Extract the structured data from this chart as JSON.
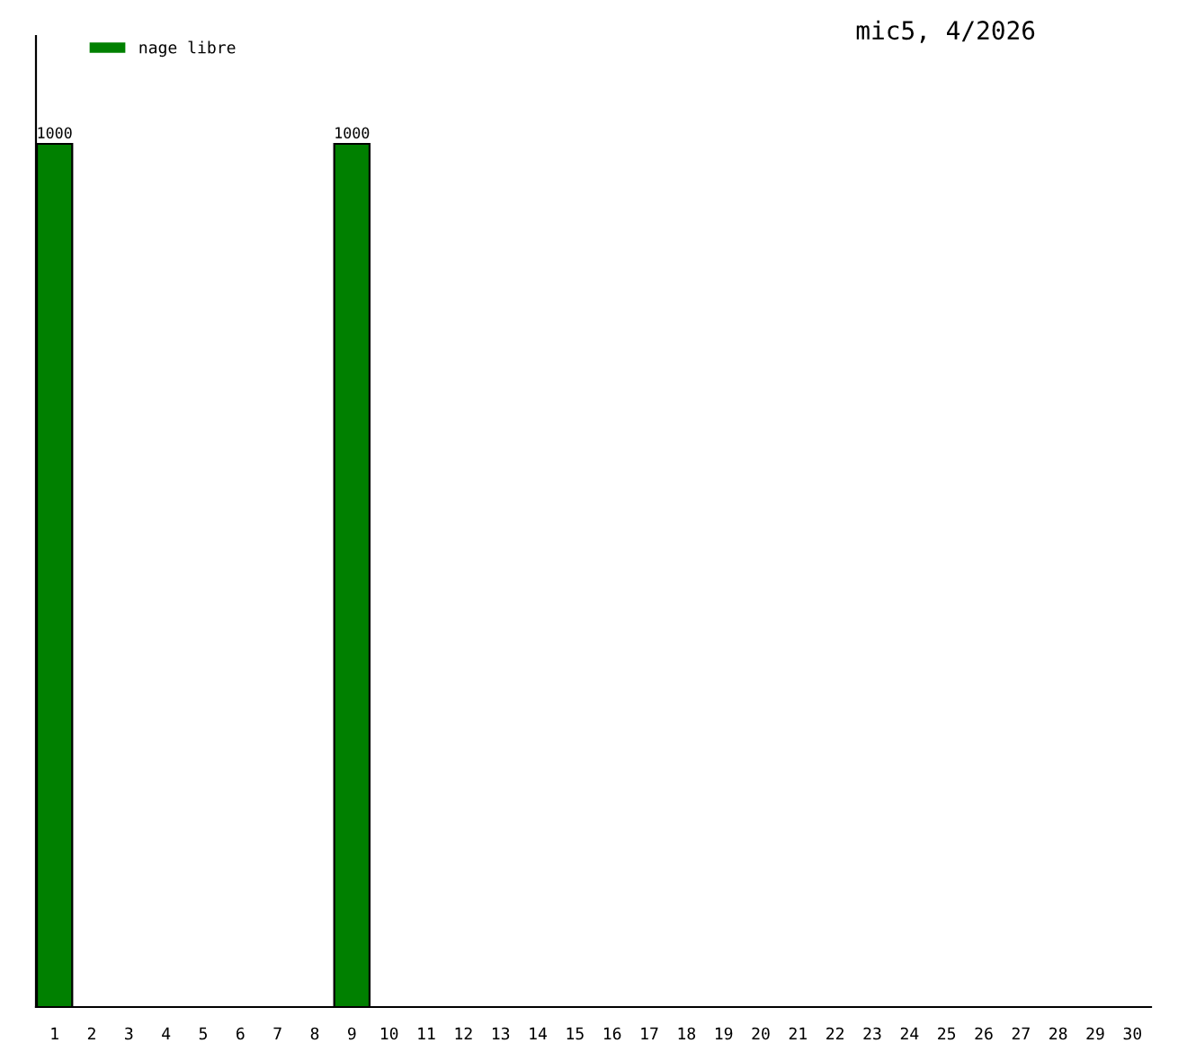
{
  "chart_data": {
    "type": "bar",
    "title": "mic5, 4/2026",
    "categories": [
      "1",
      "2",
      "3",
      "4",
      "5",
      "6",
      "7",
      "8",
      "9",
      "10",
      "11",
      "12",
      "13",
      "14",
      "15",
      "16",
      "17",
      "18",
      "19",
      "20",
      "21",
      "22",
      "23",
      "24",
      "25",
      "26",
      "27",
      "28",
      "29",
      "30"
    ],
    "series": [
      {
        "name": "nage libre",
        "color": "#008000",
        "values": [
          1000,
          null,
          null,
          null,
          null,
          null,
          null,
          null,
          1000,
          null,
          null,
          null,
          null,
          null,
          null,
          null,
          null,
          null,
          null,
          null,
          null,
          null,
          null,
          null,
          null,
          null,
          null,
          null,
          null,
          null
        ]
      }
    ],
    "data_labels": true,
    "legend": "top left",
    "grid": false
  }
}
